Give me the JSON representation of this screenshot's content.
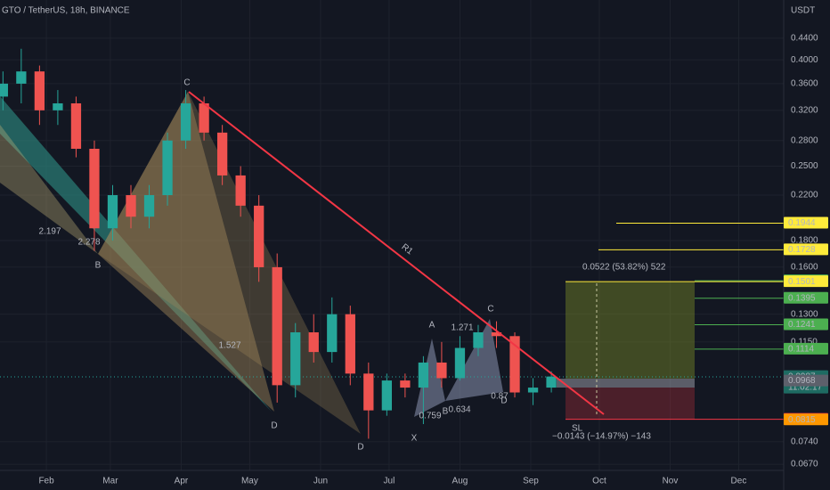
{
  "header": {
    "symbol": "GTO / TetherUS, 18h, BINANCE",
    "currency": "USDT"
  },
  "chart_data": {
    "type": "candlestick",
    "x": [
      12,
      20,
      28,
      36,
      44,
      52,
      60,
      68,
      76,
      84,
      92,
      100,
      108,
      116,
      124,
      132,
      140,
      148,
      156,
      164,
      172,
      180,
      188,
      196,
      204,
      212,
      220,
      228,
      236,
      244,
      252
    ],
    "open": [
      0.34,
      0.36,
      0.38,
      0.32,
      0.33,
      0.27,
      0.19,
      0.22,
      0.2,
      0.22,
      0.28,
      0.33,
      0.29,
      0.24,
      0.21,
      0.16,
      0.095,
      0.12,
      0.11,
      0.13,
      0.1,
      0.085,
      0.097,
      0.094,
      0.105,
      0.098,
      0.112,
      0.12,
      0.118,
      0.092,
      0.094
    ],
    "high": [
      0.38,
      0.42,
      0.39,
      0.35,
      0.34,
      0.28,
      0.23,
      0.23,
      0.23,
      0.29,
      0.35,
      0.34,
      0.3,
      0.25,
      0.22,
      0.17,
      0.125,
      0.13,
      0.14,
      0.135,
      0.105,
      0.1,
      0.1,
      0.108,
      0.115,
      0.118,
      0.124,
      0.126,
      0.12,
      0.098,
      0.101
    ],
    "low": [
      0.32,
      0.33,
      0.3,
      0.3,
      0.26,
      0.172,
      0.18,
      0.19,
      0.19,
      0.21,
      0.27,
      0.28,
      0.23,
      0.2,
      0.15,
      0.088,
      0.09,
      0.105,
      0.105,
      0.095,
      0.075,
      0.083,
      0.09,
      0.08,
      0.094,
      0.097,
      0.108,
      0.112,
      0.09,
      0.087,
      0.092
    ],
    "close": [
      0.36,
      0.38,
      0.32,
      0.33,
      0.27,
      0.19,
      0.22,
      0.2,
      0.22,
      0.28,
      0.33,
      0.29,
      0.24,
      0.21,
      0.16,
      0.095,
      0.12,
      0.11,
      0.13,
      0.1,
      0.085,
      0.097,
      0.094,
      0.105,
      0.098,
      0.112,
      0.12,
      0.118,
      0.092,
      0.094,
      0.0987
    ],
    "up_color": "#26a69a",
    "down_color": "#ef5350",
    "log_scale": true,
    "grid": true,
    "xlim": [
      10.7,
      353.7
    ],
    "xticks": [
      {
        "value": 31,
        "label": "Feb"
      },
      {
        "value": 59,
        "label": "Mar"
      },
      {
        "value": 90,
        "label": "Apr"
      },
      {
        "value": 120,
        "label": "May"
      },
      {
        "value": 151,
        "label": "Jun"
      },
      {
        "value": 181,
        "label": "Jul"
      },
      {
        "value": 212,
        "label": "Aug"
      },
      {
        "value": 243,
        "label": "Sep"
      },
      {
        "value": 273,
        "label": "Oct"
      },
      {
        "value": 304,
        "label": "Nov"
      },
      {
        "value": 334,
        "label": "Dec"
      }
    ],
    "ylim": [
      0.0652,
      0.521
    ],
    "yticks": [
      {
        "value": 0.44,
        "label": "0.4400"
      },
      {
        "value": 0.4,
        "label": "0.4000"
      },
      {
        "value": 0.36,
        "label": "0.3600"
      },
      {
        "value": 0.32,
        "label": "0.3200"
      },
      {
        "value": 0.28,
        "label": "0.2800"
      },
      {
        "value": 0.25,
        "label": "0.2500"
      },
      {
        "value": 0.22,
        "label": "0.2200"
      },
      {
        "value": 0.18,
        "label": "0.1800"
      },
      {
        "value": 0.16,
        "label": "0.1600"
      },
      {
        "value": 0.13,
        "label": "0.1300"
      },
      {
        "value": 0.115,
        "label": "0.1150"
      },
      {
        "value": 0.074,
        "label": "0.0740"
      },
      {
        "value": 0.067,
        "label": "0.0670"
      }
    ],
    "price_tags": [
      {
        "value": 0.1944,
        "color": "#ffeb3b",
        "text_color": "#131722"
      },
      {
        "value": 0.1728,
        "color": "#ffeb3b",
        "text_color": "#131722"
      },
      {
        "value": 0.1507,
        "color": "#4caf50",
        "text_color": "#ffffff"
      },
      {
        "value": 0.1501,
        "color": "#ffeb3b",
        "text_color": "#131722"
      },
      {
        "value": 0.1395,
        "color": "#4caf50",
        "text_color": "#ffffff"
      },
      {
        "value": 0.1241,
        "color": "#4caf50",
        "text_color": "#ffffff"
      },
      {
        "value": 0.1114,
        "color": "#4caf50",
        "text_color": "#ffffff"
      },
      {
        "value": 0.0987,
        "color": "#1e6b62",
        "text_color": "#ffffff",
        "time": "11:02:17"
      },
      {
        "value": 0.0968,
        "color": "#5d606b",
        "text_color": "#ffffff"
      },
      {
        "value": 0.0817,
        "color": "#f23645",
        "text_color": "#ffffff"
      },
      {
        "value": 0.0815,
        "color": "#ff9800",
        "text_color": "#131722"
      }
    ],
    "annotations": {
      "pattern_labels": [
        "C",
        "B",
        "D",
        "D",
        "X",
        "A",
        "B",
        "C",
        "D"
      ],
      "ratios": [
        "2.197",
        "2.278",
        "1.527",
        "1.271",
        "0.759",
        "0.634",
        "0.87"
      ],
      "trendline": "R1",
      "stop_loss": "SL",
      "target_measure": "0.0522 (53.82%) 522",
      "stop_measure": "−0.0143 (−14.97%) −143"
    }
  }
}
